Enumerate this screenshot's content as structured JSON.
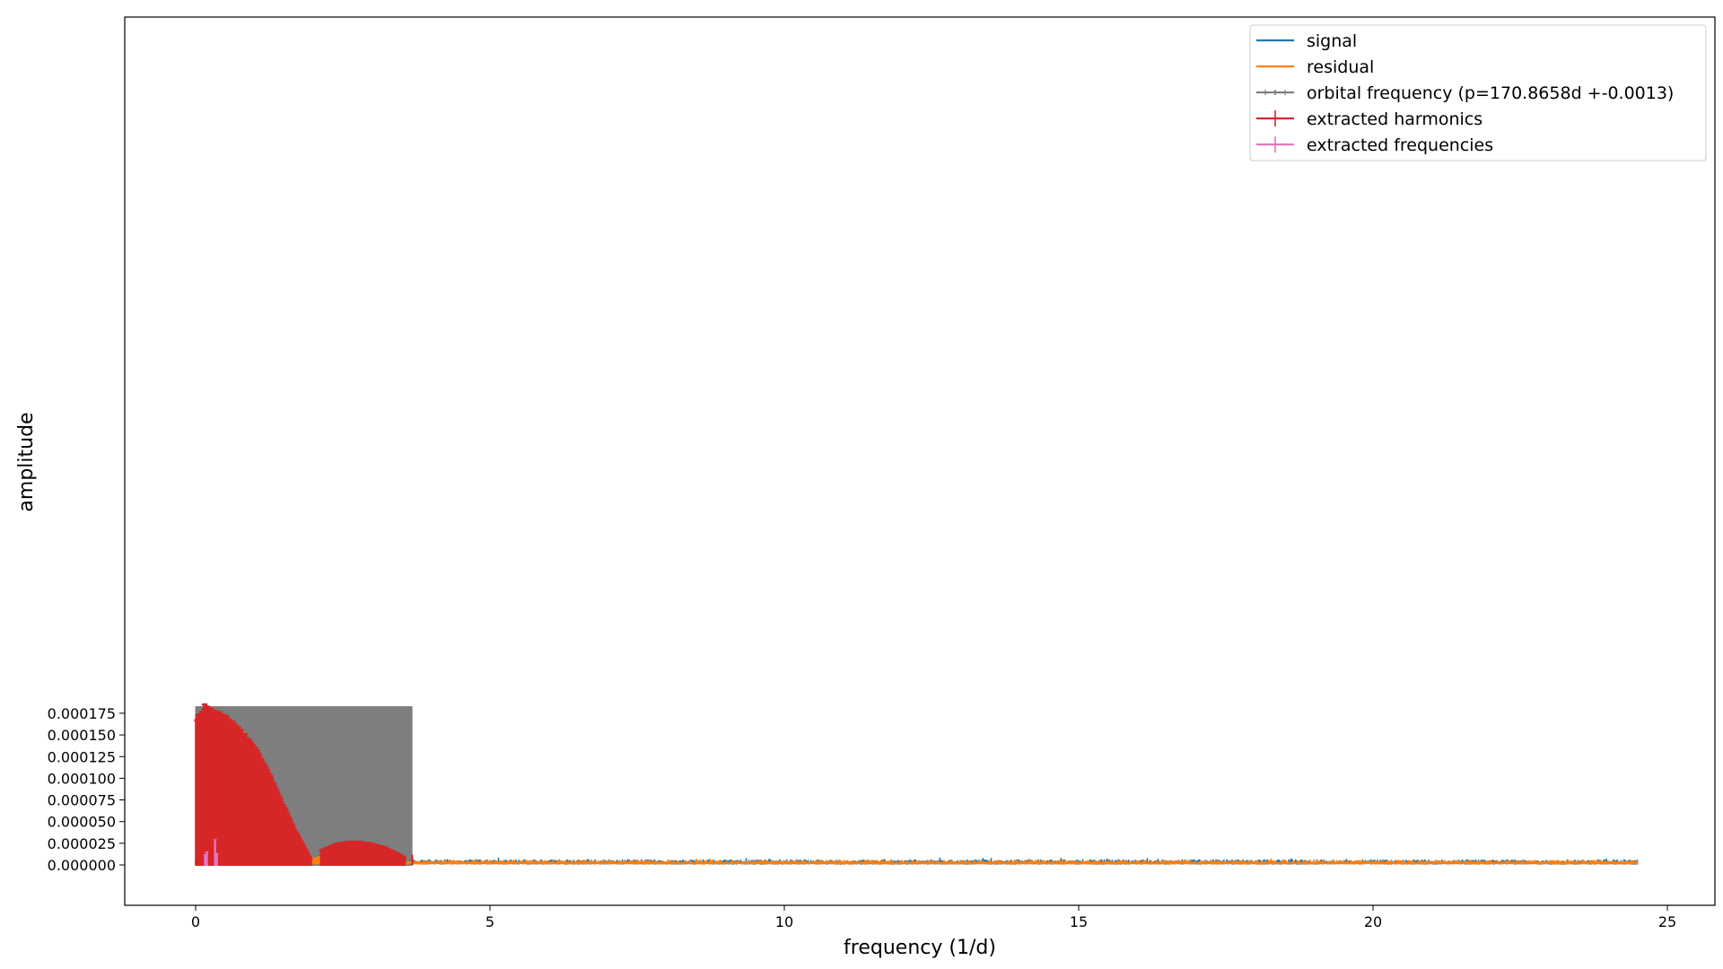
{
  "chart_data": {
    "type": "line",
    "xlabel": "frequency (1/d)",
    "ylabel": "amplitude",
    "xlim": [
      -1.2,
      25.7
    ],
    "ylim": [
      -9.2e-06,
      0.0001955
    ],
    "xticks": [
      0,
      5,
      10,
      15,
      20,
      25
    ],
    "yticks": [
      0.0,
      2.5e-05,
      5e-05,
      7.5e-05,
      0.0001,
      0.000125,
      0.00015,
      0.000175
    ],
    "xtick_labels": [
      "0",
      "5",
      "10",
      "15",
      "20",
      "25"
    ],
    "ytick_labels": [
      "0.000000",
      "0.000025",
      "0.000050",
      "0.000075",
      "0.000100",
      "0.000125",
      "0.000150",
      "0.000175"
    ],
    "grid": false,
    "legend_position": "top-right",
    "orbital_period_days": 170.8658,
    "orbital_period_error": 0.0013,
    "legend": [
      {
        "label": "signal",
        "color": "#1f77b4",
        "style": "line"
      },
      {
        "label": "residual",
        "color": "#ff7f0e",
        "style": "line"
      },
      {
        "label": "orbital frequency (p=170.8658d +-0.0013)",
        "color": "#7f7f7f",
        "style": "errorbar"
      },
      {
        "label": "extracted harmonics",
        "color": "#d62728",
        "style": "errorbar"
      },
      {
        "label": "extracted frequencies",
        "color": "#e377c2",
        "style": "errorbar"
      }
    ],
    "series": [
      {
        "name": "signal",
        "color": "#1f77b4",
        "noise_floor": 6.5e-06,
        "x_range": [
          0,
          24.5
        ]
      },
      {
        "name": "residual",
        "color": "#ff7f0e",
        "noise_floor": 5.8e-06,
        "x_range": [
          0,
          24.5
        ]
      },
      {
        "name": "orbital frequency (p=170.8658d +-0.0013)",
        "color": "#7f7f7f",
        "x_range": [
          0,
          3.68
        ],
        "amplitude": 0.000183
      },
      {
        "name": "extracted harmonics",
        "color": "#d62728",
        "envelope": [
          {
            "x": 0.0,
            "y": 0.000168
          },
          {
            "x": 0.05,
            "y": 0.000174
          },
          {
            "x": 0.15,
            "y": 0.000183
          },
          {
            "x": 0.3,
            "y": 0.000178
          },
          {
            "x": 0.5,
            "y": 0.000172
          },
          {
            "x": 0.7,
            "y": 0.00016
          },
          {
            "x": 0.9,
            "y": 0.000146
          },
          {
            "x": 1.1,
            "y": 0.000127
          },
          {
            "x": 1.3,
            "y": 0.0001
          },
          {
            "x": 1.5,
            "y": 7e-05
          },
          {
            "x": 1.7,
            "y": 4e-05
          },
          {
            "x": 1.9,
            "y": 1.5e-05
          },
          {
            "x": 1.96,
            "y": 6e-06
          },
          {
            "x": 2.15,
            "y": 1.8e-05
          },
          {
            "x": 2.4,
            "y": 2.5e-05
          },
          {
            "x": 2.6,
            "y": 2.7e-05
          },
          {
            "x": 2.8,
            "y": 2.7e-05
          },
          {
            "x": 3.0,
            "y": 2.5e-05
          },
          {
            "x": 3.2,
            "y": 2.1e-05
          },
          {
            "x": 3.4,
            "y": 1.5e-05
          },
          {
            "x": 3.55,
            "y": 9e-06
          }
        ]
      },
      {
        "name": "extracted frequencies",
        "color": "#e377c2",
        "points": [
          {
            "x": 0.16,
            "y": 1.2e-05
          },
          {
            "x": 0.19,
            "y": 1.5e-05
          },
          {
            "x": 0.33,
            "y": 2.9e-05
          },
          {
            "x": 0.36,
            "y": 1.3e-05
          }
        ]
      }
    ]
  }
}
